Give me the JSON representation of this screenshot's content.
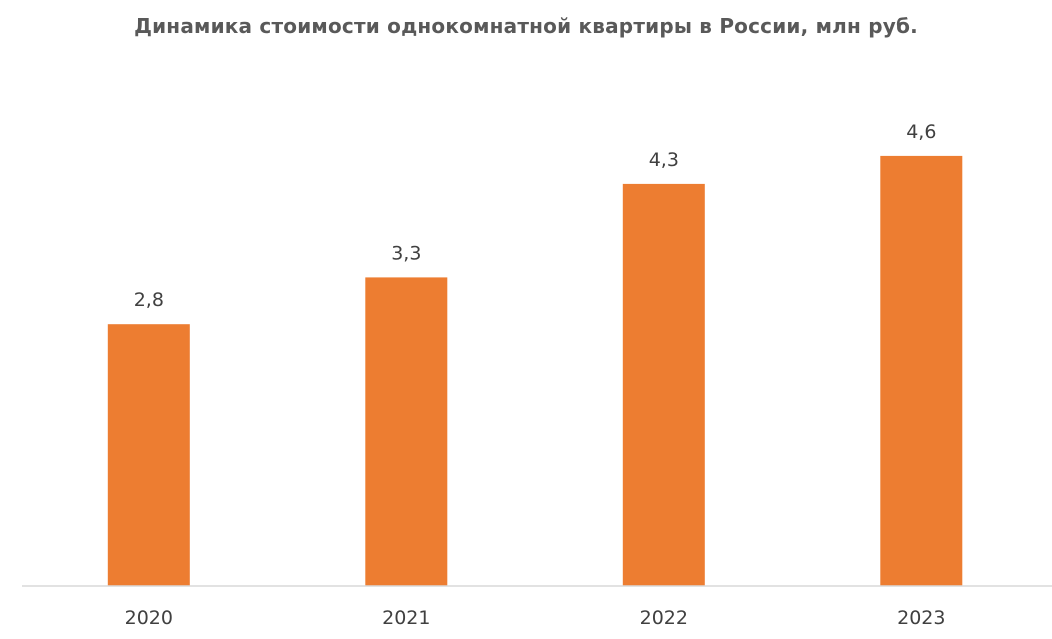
{
  "chart_data": {
    "type": "bar",
    "title": "Динамика стоимости однокомнатной квартиры в России, млн руб.",
    "categories": [
      "2020",
      "2021",
      "2022",
      "2023"
    ],
    "values": [
      2.8,
      3.3,
      4.3,
      4.6
    ],
    "value_labels": [
      "2,8",
      "3,3",
      "4,3",
      "4,6"
    ],
    "xlabel": "",
    "ylabel": "",
    "ylim": [
      0,
      5.8
    ],
    "grid": false,
    "legend": "none",
    "colors": {
      "bar": "#ED7D31"
    }
  }
}
